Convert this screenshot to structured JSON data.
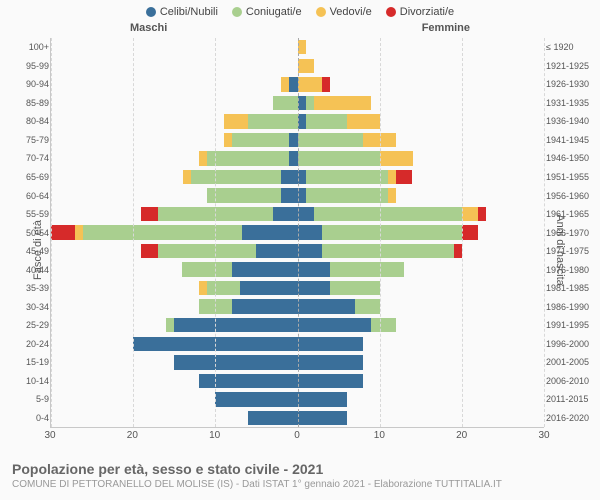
{
  "legend": {
    "items": [
      {
        "label": "Celibi/Nubili",
        "color": "#3a6f9a"
      },
      {
        "label": "Coniugati/e",
        "color": "#a9cf8f"
      },
      {
        "label": "Vedovi/e",
        "color": "#f5c255"
      },
      {
        "label": "Divorziati/e",
        "color": "#d62a2a"
      }
    ]
  },
  "gender": {
    "male": "Maschi",
    "female": "Femmine"
  },
  "axes": {
    "left_title": "Fasce di età",
    "right_title": "Anni di nascita",
    "x_max": 30,
    "x_ticks": [
      30,
      20,
      10,
      0,
      10,
      20,
      30
    ],
    "grid_color": "#d8d8d8"
  },
  "colors": {
    "single": "#3a6f9a",
    "married": "#a9cf8f",
    "widowed": "#f5c255",
    "divorced": "#d62a2a",
    "background": "#fafafa"
  },
  "title": "Popolazione per età, sesso e stato civile - 2021",
  "subtitle": "COMUNE DI PETTORANELLO DEL MOLISE (IS) - Dati ISTAT 1° gennaio 2021 - Elaborazione TUTTITALIA.IT",
  "rows": [
    {
      "age": "100+",
      "birth": "≤ 1920",
      "m": {
        "s": 0,
        "c": 0,
        "w": 0,
        "d": 0
      },
      "f": {
        "s": 0,
        "c": 0,
        "w": 1,
        "d": 0
      }
    },
    {
      "age": "95-99",
      "birth": "1921-1925",
      "m": {
        "s": 0,
        "c": 0,
        "w": 0,
        "d": 0
      },
      "f": {
        "s": 0,
        "c": 0,
        "w": 2,
        "d": 0
      }
    },
    {
      "age": "90-94",
      "birth": "1926-1930",
      "m": {
        "s": 1,
        "c": 0,
        "w": 1,
        "d": 0
      },
      "f": {
        "s": 0,
        "c": 0,
        "w": 3,
        "d": 1
      }
    },
    {
      "age": "85-89",
      "birth": "1931-1935",
      "m": {
        "s": 0,
        "c": 3,
        "w": 0,
        "d": 0
      },
      "f": {
        "s": 1,
        "c": 1,
        "w": 7,
        "d": 0
      }
    },
    {
      "age": "80-84",
      "birth": "1936-1940",
      "m": {
        "s": 0,
        "c": 6,
        "w": 3,
        "d": 0
      },
      "f": {
        "s": 1,
        "c": 5,
        "w": 4,
        "d": 0
      }
    },
    {
      "age": "75-79",
      "birth": "1941-1945",
      "m": {
        "s": 1,
        "c": 7,
        "w": 1,
        "d": 0
      },
      "f": {
        "s": 0,
        "c": 8,
        "w": 4,
        "d": 0
      }
    },
    {
      "age": "70-74",
      "birth": "1946-1950",
      "m": {
        "s": 1,
        "c": 10,
        "w": 1,
        "d": 0
      },
      "f": {
        "s": 0,
        "c": 10,
        "w": 4,
        "d": 0
      }
    },
    {
      "age": "65-69",
      "birth": "1951-1955",
      "m": {
        "s": 2,
        "c": 11,
        "w": 1,
        "d": 0
      },
      "f": {
        "s": 1,
        "c": 10,
        "w": 1,
        "d": 2
      }
    },
    {
      "age": "60-64",
      "birth": "1956-1960",
      "m": {
        "s": 2,
        "c": 9,
        "w": 0,
        "d": 0
      },
      "f": {
        "s": 1,
        "c": 10,
        "w": 1,
        "d": 0
      }
    },
    {
      "age": "55-59",
      "birth": "1961-1965",
      "m": {
        "s": 3,
        "c": 14,
        "w": 0,
        "d": 2
      },
      "f": {
        "s": 2,
        "c": 18,
        "w": 2,
        "d": 1
      }
    },
    {
      "age": "50-54",
      "birth": "1966-1970",
      "m": {
        "s": 7,
        "c": 20,
        "w": 1,
        "d": 3
      },
      "f": {
        "s": 3,
        "c": 17,
        "w": 0,
        "d": 2
      }
    },
    {
      "age": "45-49",
      "birth": "1971-1975",
      "m": {
        "s": 5,
        "c": 12,
        "w": 0,
        "d": 2
      },
      "f": {
        "s": 3,
        "c": 16,
        "w": 0,
        "d": 1
      }
    },
    {
      "age": "40-44",
      "birth": "1976-1980",
      "m": {
        "s": 8,
        "c": 6,
        "w": 0,
        "d": 0
      },
      "f": {
        "s": 4,
        "c": 9,
        "w": 0,
        "d": 0
      }
    },
    {
      "age": "35-39",
      "birth": "1981-1985",
      "m": {
        "s": 7,
        "c": 4,
        "w": 1,
        "d": 0
      },
      "f": {
        "s": 4,
        "c": 6,
        "w": 0,
        "d": 0
      }
    },
    {
      "age": "30-34",
      "birth": "1986-1990",
      "m": {
        "s": 8,
        "c": 4,
        "w": 0,
        "d": 0
      },
      "f": {
        "s": 7,
        "c": 3,
        "w": 0,
        "d": 0
      }
    },
    {
      "age": "25-29",
      "birth": "1991-1995",
      "m": {
        "s": 15,
        "c": 1,
        "w": 0,
        "d": 0
      },
      "f": {
        "s": 9,
        "c": 3,
        "w": 0,
        "d": 0
      }
    },
    {
      "age": "20-24",
      "birth": "1996-2000",
      "m": {
        "s": 20,
        "c": 0,
        "w": 0,
        "d": 0
      },
      "f": {
        "s": 8,
        "c": 0,
        "w": 0,
        "d": 0
      }
    },
    {
      "age": "15-19",
      "birth": "2001-2005",
      "m": {
        "s": 15,
        "c": 0,
        "w": 0,
        "d": 0
      },
      "f": {
        "s": 8,
        "c": 0,
        "w": 0,
        "d": 0
      }
    },
    {
      "age": "10-14",
      "birth": "2006-2010",
      "m": {
        "s": 12,
        "c": 0,
        "w": 0,
        "d": 0
      },
      "f": {
        "s": 8,
        "c": 0,
        "w": 0,
        "d": 0
      }
    },
    {
      "age": "5-9",
      "birth": "2011-2015",
      "m": {
        "s": 10,
        "c": 0,
        "w": 0,
        "d": 0
      },
      "f": {
        "s": 6,
        "c": 0,
        "w": 0,
        "d": 0
      }
    },
    {
      "age": "0-4",
      "birth": "2016-2020",
      "m": {
        "s": 6,
        "c": 0,
        "w": 0,
        "d": 0
      },
      "f": {
        "s": 6,
        "c": 0,
        "w": 0,
        "d": 0
      }
    }
  ]
}
